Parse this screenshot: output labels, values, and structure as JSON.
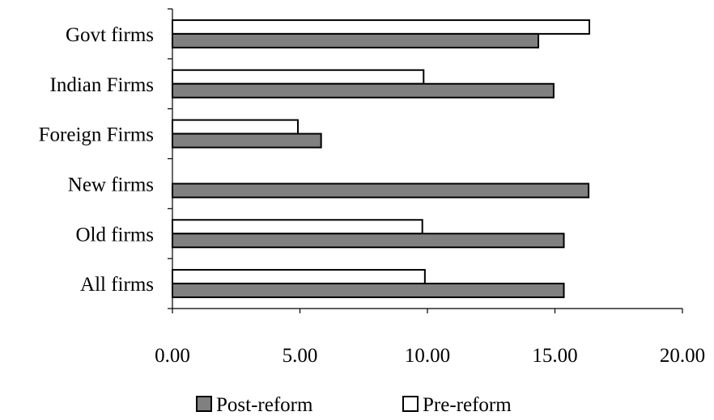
{
  "chart_data": {
    "type": "bar",
    "orientation": "horizontal",
    "categories": [
      "Govt firms",
      "Indian Firms",
      "Foreign Firms",
      "New firms",
      "Old firms",
      "All firms"
    ],
    "series": [
      {
        "name": "Pre-reform",
        "color": "#ffffff",
        "values": [
          16.35,
          9.85,
          4.92,
          null,
          9.8,
          9.9
        ]
      },
      {
        "name": "Post-reform",
        "color": "#808080",
        "values": [
          14.35,
          14.95,
          5.83,
          16.32,
          15.35,
          15.35
        ]
      }
    ],
    "xlim": [
      0,
      20
    ],
    "xticks": [
      0,
      5,
      10,
      15,
      20
    ],
    "xtick_labels": [
      "0.00",
      "5.00",
      "10.00",
      "15.00",
      "20.00"
    ],
    "grid": false,
    "legend_position": "bottom",
    "legend": [
      {
        "label": "Post-reform",
        "color": "#808080"
      },
      {
        "label": "Pre-reform",
        "color": "#ffffff"
      }
    ]
  }
}
